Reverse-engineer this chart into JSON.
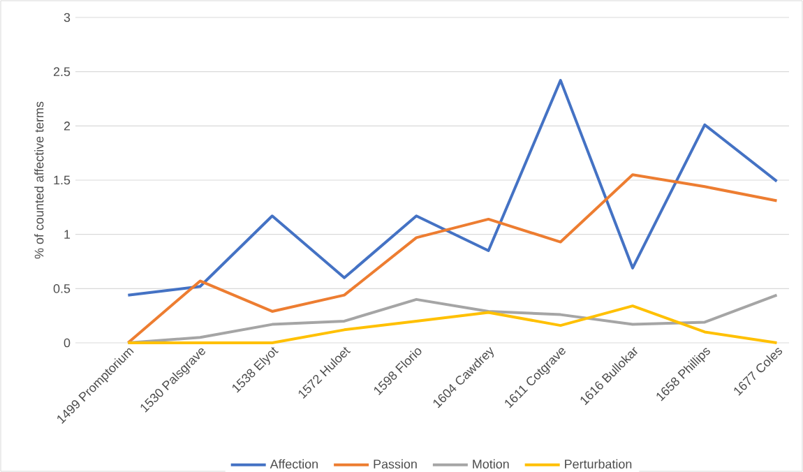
{
  "chart_data": {
    "type": "line",
    "ylabel": "% of counted affective terms",
    "categories": [
      "1499 Promptorium",
      "1530 Palsgrave",
      "1538 Elyot",
      "1572 Huloet",
      "1598 Florio",
      "1604 Cawdrey",
      "1611 Cotgrave",
      "1616 Bullokar",
      "1658 Phillips",
      "1677 Coles"
    ],
    "series": [
      {
        "name": "Affection",
        "color": "#4472c4",
        "values": [
          0.44,
          0.52,
          1.17,
          0.6,
          1.17,
          0.85,
          2.42,
          0.69,
          2.01,
          1.49
        ]
      },
      {
        "name": "Passion",
        "color": "#ed7d31",
        "values": [
          0,
          0.57,
          0.29,
          0.44,
          0.97,
          1.14,
          0.93,
          1.55,
          1.44,
          1.31
        ]
      },
      {
        "name": "Motion",
        "color": "#a5a5a5",
        "values": [
          0,
          0.05,
          0.17,
          0.2,
          0.4,
          0.29,
          0.26,
          0.17,
          0.19,
          0.44
        ]
      },
      {
        "name": "Perturbation",
        "color": "#ffc000",
        "values": [
          0,
          0,
          0,
          0.12,
          0.2,
          0.28,
          0.16,
          0.34,
          0.1,
          0
        ]
      }
    ],
    "ylim": [
      0,
      3
    ],
    "yticks": [
      0,
      0.5,
      1,
      1.5,
      2,
      2.5,
      3
    ],
    "grid": "y",
    "legend": "bottom",
    "marker": "none",
    "line_style": "solid"
  }
}
